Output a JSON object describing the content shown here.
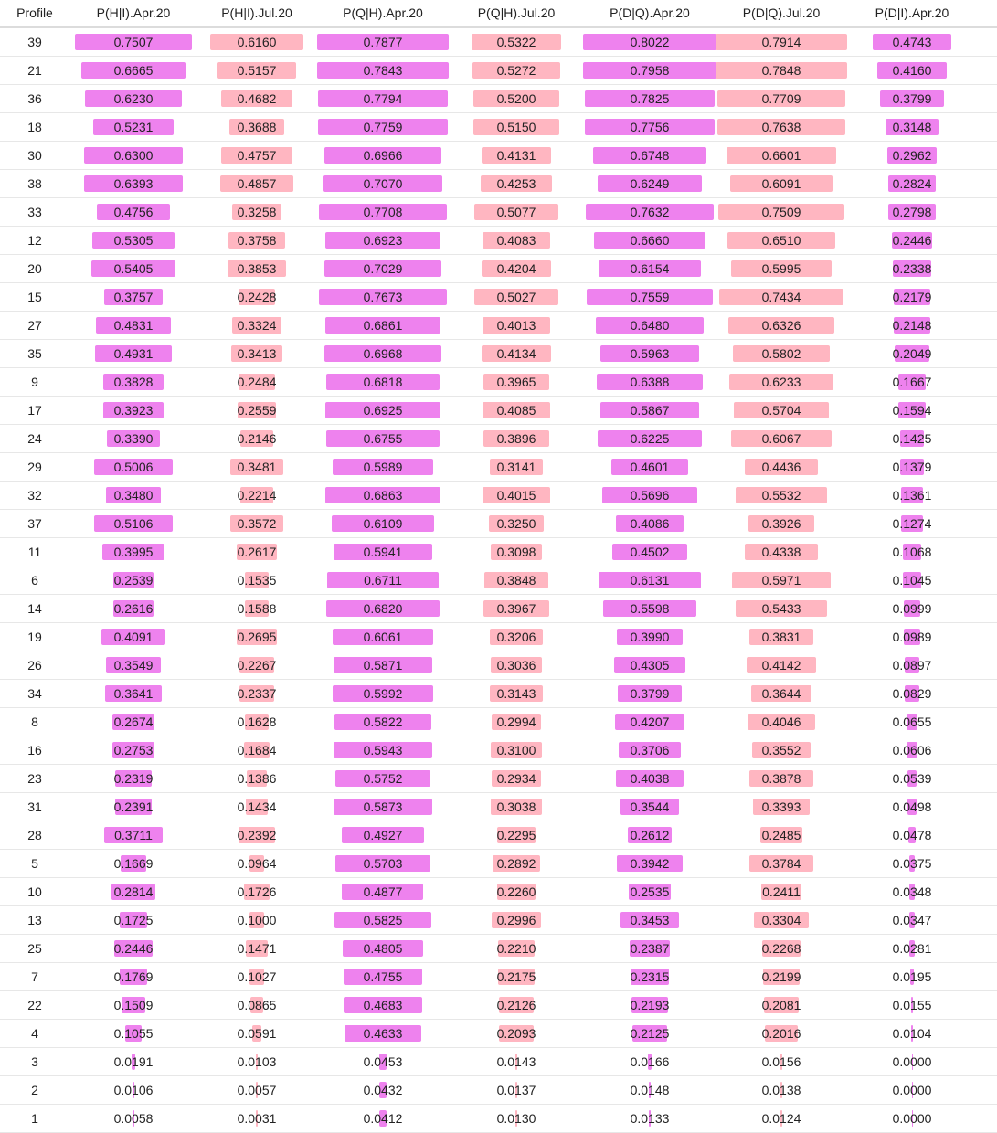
{
  "header": {
    "profile": "Profile",
    "columns": [
      "P(H|I).Apr.20",
      "P(H|I).Jul.20",
      "P(Q|H).Apr.20",
      "P(Q|H).Jul.20",
      "P(D|Q).Apr.20",
      "P(D|Q).Jul.20",
      "P(D|I).Apr.20"
    ]
  },
  "colors": {
    "apr": "#ee82ee",
    "jul": "#ffb6c1"
  },
  "rows": [
    {
      "profile": "39",
      "values": [
        "0.7507",
        "0.6160",
        "0.7877",
        "0.5322",
        "0.8022",
        "0.7914",
        "0.4743"
      ]
    },
    {
      "profile": "21",
      "values": [
        "0.6665",
        "0.5157",
        "0.7843",
        "0.5272",
        "0.7958",
        "0.7848",
        "0.4160"
      ]
    },
    {
      "profile": "36",
      "values": [
        "0.6230",
        "0.4682",
        "0.7794",
        "0.5200",
        "0.7825",
        "0.7709",
        "0.3799"
      ]
    },
    {
      "profile": "18",
      "values": [
        "0.5231",
        "0.3688",
        "0.7759",
        "0.5150",
        "0.7756",
        "0.7638",
        "0.3148"
      ]
    },
    {
      "profile": "30",
      "values": [
        "0.6300",
        "0.4757",
        "0.6966",
        "0.4131",
        "0.6748",
        "0.6601",
        "0.2962"
      ]
    },
    {
      "profile": "38",
      "values": [
        "0.6393",
        "0.4857",
        "0.7070",
        "0.4253",
        "0.6249",
        "0.6091",
        "0.2824"
      ]
    },
    {
      "profile": "33",
      "values": [
        "0.4756",
        "0.3258",
        "0.7708",
        "0.5077",
        "0.7632",
        "0.7509",
        "0.2798"
      ]
    },
    {
      "profile": "12",
      "values": [
        "0.5305",
        "0.3758",
        "0.6923",
        "0.4083",
        "0.6660",
        "0.6510",
        "0.2446"
      ]
    },
    {
      "profile": "20",
      "values": [
        "0.5405",
        "0.3853",
        "0.7029",
        "0.4204",
        "0.6154",
        "0.5995",
        "0.2338"
      ]
    },
    {
      "profile": "15",
      "values": [
        "0.3757",
        "0.2428",
        "0.7673",
        "0.5027",
        "0.7559",
        "0.7434",
        "0.2179"
      ]
    },
    {
      "profile": "27",
      "values": [
        "0.4831",
        "0.3324",
        "0.6861",
        "0.4013",
        "0.6480",
        "0.6326",
        "0.2148"
      ]
    },
    {
      "profile": "35",
      "values": [
        "0.4931",
        "0.3413",
        "0.6968",
        "0.4134",
        "0.5963",
        "0.5802",
        "0.2049"
      ]
    },
    {
      "profile": "9",
      "values": [
        "0.3828",
        "0.2484",
        "0.6818",
        "0.3965",
        "0.6388",
        "0.6233",
        "0.1667"
      ]
    },
    {
      "profile": "17",
      "values": [
        "0.3923",
        "0.2559",
        "0.6925",
        "0.4085",
        "0.5867",
        "0.5704",
        "0.1594"
      ]
    },
    {
      "profile": "24",
      "values": [
        "0.3390",
        "0.2146",
        "0.6755",
        "0.3896",
        "0.6225",
        "0.6067",
        "0.1425"
      ]
    },
    {
      "profile": "29",
      "values": [
        "0.5006",
        "0.3481",
        "0.5989",
        "0.3141",
        "0.4601",
        "0.4436",
        "0.1379"
      ]
    },
    {
      "profile": "32",
      "values": [
        "0.3480",
        "0.2214",
        "0.6863",
        "0.4015",
        "0.5696",
        "0.5532",
        "0.1361"
      ]
    },
    {
      "profile": "37",
      "values": [
        "0.5106",
        "0.3572",
        "0.6109",
        "0.3250",
        "0.4086",
        "0.3926",
        "0.1274"
      ]
    },
    {
      "profile": "11",
      "values": [
        "0.3995",
        "0.2617",
        "0.5941",
        "0.3098",
        "0.4502",
        "0.4338",
        "0.1068"
      ]
    },
    {
      "profile": "6",
      "values": [
        "0.2539",
        "0.1535",
        "0.6711",
        "0.3848",
        "0.6131",
        "0.5971",
        "0.1045"
      ]
    },
    {
      "profile": "14",
      "values": [
        "0.2616",
        "0.1588",
        "0.6820",
        "0.3967",
        "0.5598",
        "0.5433",
        "0.0999"
      ]
    },
    {
      "profile": "19",
      "values": [
        "0.4091",
        "0.2695",
        "0.6061",
        "0.3206",
        "0.3990",
        "0.3831",
        "0.0989"
      ]
    },
    {
      "profile": "26",
      "values": [
        "0.3549",
        "0.2267",
        "0.5871",
        "0.3036",
        "0.4305",
        "0.4142",
        "0.0897"
      ]
    },
    {
      "profile": "34",
      "values": [
        "0.3641",
        "0.2337",
        "0.5992",
        "0.3143",
        "0.3799",
        "0.3644",
        "0.0829"
      ]
    },
    {
      "profile": "8",
      "values": [
        "0.2674",
        "0.1628",
        "0.5822",
        "0.2994",
        "0.4207",
        "0.4046",
        "0.0655"
      ]
    },
    {
      "profile": "16",
      "values": [
        "0.2753",
        "0.1684",
        "0.5943",
        "0.3100",
        "0.3706",
        "0.3552",
        "0.0606"
      ]
    },
    {
      "profile": "23",
      "values": [
        "0.2319",
        "0.1386",
        "0.5752",
        "0.2934",
        "0.4038",
        "0.3878",
        "0.0539"
      ]
    },
    {
      "profile": "31",
      "values": [
        "0.2391",
        "0.1434",
        "0.5873",
        "0.3038",
        "0.3544",
        "0.3393",
        "0.0498"
      ]
    },
    {
      "profile": "28",
      "values": [
        "0.3711",
        "0.2392",
        "0.4927",
        "0.2295",
        "0.2612",
        "0.2485",
        "0.0478"
      ]
    },
    {
      "profile": "5",
      "values": [
        "0.1669",
        "0.0964",
        "0.5703",
        "0.2892",
        "0.3942",
        "0.3784",
        "0.0375"
      ]
    },
    {
      "profile": "10",
      "values": [
        "0.2814",
        "0.1726",
        "0.4877",
        "0.2260",
        "0.2535",
        "0.2411",
        "0.0348"
      ]
    },
    {
      "profile": "13",
      "values": [
        "0.1725",
        "0.1000",
        "0.5825",
        "0.2996",
        "0.3453",
        "0.3304",
        "0.0347"
      ]
    },
    {
      "profile": "25",
      "values": [
        "0.2446",
        "0.1471",
        "0.4805",
        "0.2210",
        "0.2387",
        "0.2268",
        "0.0281"
      ]
    },
    {
      "profile": "7",
      "values": [
        "0.1769",
        "0.1027",
        "0.4755",
        "0.2175",
        "0.2315",
        "0.2199",
        "0.0195"
      ]
    },
    {
      "profile": "22",
      "values": [
        "0.1509",
        "0.0865",
        "0.4683",
        "0.2126",
        "0.2193",
        "0.2081",
        "0.0155"
      ]
    },
    {
      "profile": "4",
      "values": [
        "0.1055",
        "0.0591",
        "0.4633",
        "0.2093",
        "0.2125",
        "0.2016",
        "0.0104"
      ]
    },
    {
      "profile": "3",
      "values": [
        "0.0191",
        "0.0103",
        "0.0453",
        "0.0143",
        "0.0166",
        "0.0156",
        "0.0000"
      ]
    },
    {
      "profile": "2",
      "values": [
        "0.0106",
        "0.0057",
        "0.0432",
        "0.0137",
        "0.0148",
        "0.0138",
        "0.0000"
      ]
    },
    {
      "profile": "1",
      "values": [
        "0.0058",
        "0.0031",
        "0.0412",
        "0.0130",
        "0.0133",
        "0.0124",
        "0.0000"
      ]
    }
  ]
}
